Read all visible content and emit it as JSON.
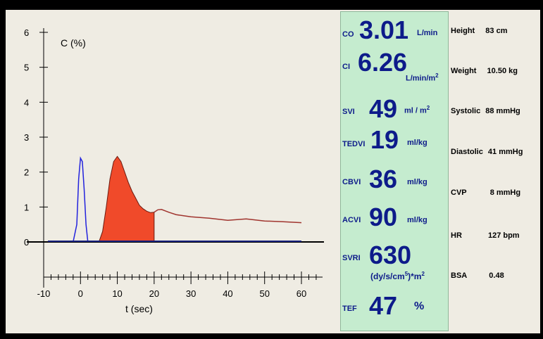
{
  "chart": {
    "ylabel": "C (%)",
    "xlabel": "t (sec)",
    "y_ticks": [
      "0",
      "1",
      "2",
      "3",
      "4",
      "5",
      "6"
    ],
    "x_ticks": [
      "-10",
      "0",
      "10",
      "20",
      "30",
      "40",
      "50",
      "60"
    ],
    "colors": {
      "indicator": "#2222dd",
      "fill": "#f04a2a",
      "tail": "#a0342e",
      "baseline": "#1a237e"
    }
  },
  "chart_data": {
    "type": "line",
    "x_range": [
      -10,
      65
    ],
    "y_range": [
      0,
      6
    ],
    "xlabel": "t (sec)",
    "ylabel": "C (%)",
    "series": [
      {
        "name": "",
        "x": [
          -2,
          -1,
          -0.5,
          0,
          0.5,
          1,
          1.5,
          2
        ],
        "y": [
          0,
          0.5,
          1.8,
          2.4,
          2.3,
          1.5,
          0.5,
          0
        ]
      },
      {
        "name": "",
        "x": [
          5,
          6,
          7,
          8,
          9,
          10,
          11,
          12,
          13,
          14,
          15,
          16,
          17,
          18,
          19,
          20
        ],
        "y": [
          0,
          0.3,
          1.0,
          1.8,
          2.3,
          2.45,
          2.3,
          2.0,
          1.7,
          1.45,
          1.25,
          1.05,
          0.95,
          0.88,
          0.84,
          0.85
        ]
      },
      {
        "name": "",
        "x": [
          20,
          21,
          22,
          24,
          26,
          28,
          30,
          35,
          40,
          45,
          50,
          55,
          60
        ],
        "y": [
          0.85,
          0.92,
          0.93,
          0.85,
          0.78,
          0.75,
          0.72,
          0.68,
          0.62,
          0.66,
          0.6,
          0.58,
          0.55
        ]
      }
    ]
  },
  "panel": {
    "co": {
      "label": "CO",
      "value": "3.01",
      "unit": "L/min"
    },
    "ci": {
      "label": "CI",
      "value": "6.26",
      "unit": "L/min/m"
    },
    "svi": {
      "label": "SVI",
      "value": "49",
      "unit": "ml / m"
    },
    "tedvi": {
      "label": "TEDVI",
      "value": "19",
      "unit": "ml/kg"
    },
    "cbvi": {
      "label": "CBVI",
      "value": "36",
      "unit": "ml/kg"
    },
    "acvi": {
      "label": "ACVI",
      "value": "90",
      "unit": "ml/kg"
    },
    "svri": {
      "label": "SVRI",
      "value": "630",
      "unit_a": "(dy/s/cm",
      "unit_b": ")*m"
    },
    "tef": {
      "label": "TEF",
      "value": "47",
      "unit": "%"
    }
  },
  "info": {
    "height": {
      "label": "Height",
      "value": "83 cm"
    },
    "weight": {
      "label": "Weight",
      "value": "10.50 kg"
    },
    "systolic": {
      "label": "Systolic",
      "value": "88 mmHg"
    },
    "diastolic": {
      "label": "Diastolic",
      "value": "41 mmHg"
    },
    "cvp": {
      "label": "CVP",
      "value": "8 mmHg"
    },
    "hr": {
      "label": "HR",
      "value": "127 bpm"
    },
    "bsa": {
      "label": "BSA",
      "value": "0.48"
    }
  }
}
